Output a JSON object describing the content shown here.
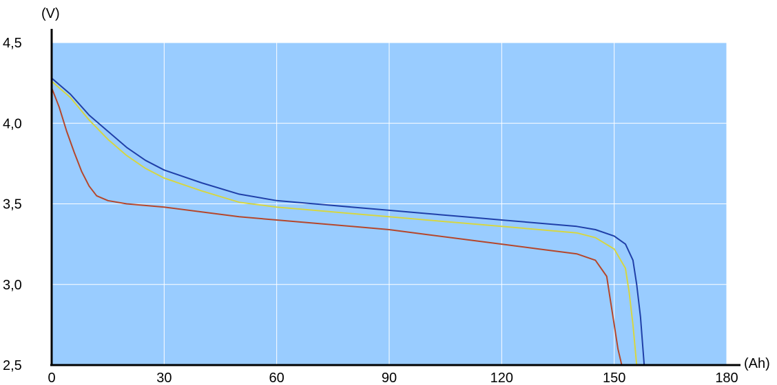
{
  "chart_data": {
    "type": "line",
    "xlabel": "(Ah)",
    "ylabel": "(V)",
    "xlim": [
      0,
      180
    ],
    "ylim": [
      2.5,
      4.5
    ],
    "x_ticks": [
      {
        "value": 0,
        "label": "0"
      },
      {
        "value": 30,
        "label": "30"
      },
      {
        "value": 60,
        "label": "60"
      },
      {
        "value": 90,
        "label": "90"
      },
      {
        "value": 120,
        "label": "120"
      },
      {
        "value": 150,
        "label": "150"
      },
      {
        "value": 180,
        "label": "180"
      }
    ],
    "y_ticks": [
      {
        "value": 2.5,
        "label": "2,5"
      },
      {
        "value": 3.0,
        "label": "3,0"
      },
      {
        "value": 3.5,
        "label": "3,5"
      },
      {
        "value": 4.0,
        "label": "4,0"
      },
      {
        "value": 4.5,
        "label": "4,5"
      }
    ],
    "grid": true,
    "plot_background": "#99ccff",
    "grid_color": "#ffffff",
    "series": [
      {
        "color": "#1f3fa8",
        "points": [
          [
            0,
            4.28
          ],
          [
            5,
            4.18
          ],
          [
            10,
            4.05
          ],
          [
            15,
            3.95
          ],
          [
            20,
            3.85
          ],
          [
            25,
            3.77
          ],
          [
            30,
            3.71
          ],
          [
            40,
            3.63
          ],
          [
            50,
            3.56
          ],
          [
            60,
            3.52
          ],
          [
            70,
            3.5
          ],
          [
            80,
            3.48
          ],
          [
            90,
            3.46
          ],
          [
            100,
            3.44
          ],
          [
            110,
            3.42
          ],
          [
            120,
            3.4
          ],
          [
            130,
            3.38
          ],
          [
            140,
            3.36
          ],
          [
            145,
            3.34
          ],
          [
            150,
            3.3
          ],
          [
            153,
            3.25
          ],
          [
            155,
            3.15
          ],
          [
            156,
            3.0
          ],
          [
            157,
            2.8
          ],
          [
            158,
            2.5
          ]
        ]
      },
      {
        "color": "#d6d640",
        "points": [
          [
            0,
            4.26
          ],
          [
            5,
            4.16
          ],
          [
            10,
            4.02
          ],
          [
            15,
            3.9
          ],
          [
            20,
            3.8
          ],
          [
            25,
            3.72
          ],
          [
            30,
            3.66
          ],
          [
            40,
            3.58
          ],
          [
            50,
            3.51
          ],
          [
            60,
            3.48
          ],
          [
            70,
            3.46
          ],
          [
            80,
            3.44
          ],
          [
            90,
            3.42
          ],
          [
            100,
            3.4
          ],
          [
            110,
            3.38
          ],
          [
            120,
            3.36
          ],
          [
            130,
            3.34
          ],
          [
            140,
            3.32
          ],
          [
            145,
            3.29
          ],
          [
            150,
            3.22
          ],
          [
            153,
            3.1
          ],
          [
            154,
            2.95
          ],
          [
            155,
            2.75
          ],
          [
            156,
            2.5
          ]
        ]
      },
      {
        "color": "#b5462a",
        "points": [
          [
            0,
            4.22
          ],
          [
            2,
            4.1
          ],
          [
            4,
            3.95
          ],
          [
            6,
            3.82
          ],
          [
            8,
            3.7
          ],
          [
            10,
            3.61
          ],
          [
            12,
            3.55
          ],
          [
            15,
            3.52
          ],
          [
            20,
            3.5
          ],
          [
            30,
            3.48
          ],
          [
            40,
            3.45
          ],
          [
            50,
            3.42
          ],
          [
            60,
            3.4
          ],
          [
            70,
            3.38
          ],
          [
            80,
            3.36
          ],
          [
            90,
            3.34
          ],
          [
            100,
            3.31
          ],
          [
            110,
            3.28
          ],
          [
            120,
            3.25
          ],
          [
            130,
            3.22
          ],
          [
            140,
            3.19
          ],
          [
            145,
            3.15
          ],
          [
            148,
            3.05
          ],
          [
            149,
            2.9
          ],
          [
            150,
            2.75
          ],
          [
            151,
            2.6
          ],
          [
            152,
            2.5
          ]
        ]
      }
    ]
  }
}
